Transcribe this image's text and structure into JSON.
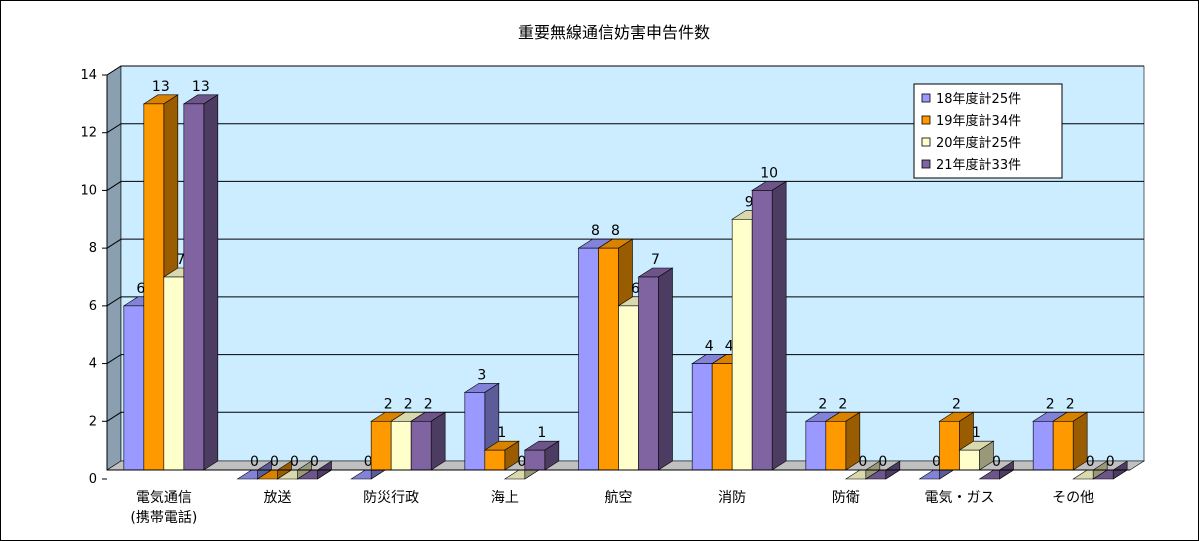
{
  "chart_data": {
    "type": "bar",
    "title": "重要無線通信妨害申告件数",
    "categories": [
      [
        "電気通信",
        "(携帯電話)"
      ],
      [
        "放送"
      ],
      [
        "防災行政"
      ],
      [
        "海上"
      ],
      [
        "航空"
      ],
      [
        "消防"
      ],
      [
        "防衛"
      ],
      [
        "電気・ガス"
      ],
      [
        "その他"
      ]
    ],
    "series": [
      {
        "name": "18年度計25件",
        "color": "#9999ff",
        "values": [
          6,
          0,
          0,
          3,
          8,
          4,
          2,
          0,
          2
        ]
      },
      {
        "name": "19年度計34件",
        "color": "#ff9900",
        "values": [
          13,
          0,
          2,
          1,
          8,
          4,
          2,
          2,
          2
        ]
      },
      {
        "name": "20年度計25件",
        "color": "#ffffcc",
        "values": [
          7,
          0,
          2,
          0,
          6,
          9,
          0,
          1,
          0
        ]
      },
      {
        "name": "21年度計33件",
        "color": "#8064a2",
        "values": [
          13,
          0,
          2,
          1,
          7,
          10,
          0,
          0,
          0
        ]
      }
    ],
    "ylim": [
      0,
      14
    ],
    "yticks": [
      0,
      2,
      4,
      6,
      8,
      10,
      12,
      14
    ],
    "grid": true,
    "legend": "top-right",
    "plot_bg": "#ccecff",
    "side_wall": "#8aa0b0",
    "floor": "#c0c0c0"
  }
}
